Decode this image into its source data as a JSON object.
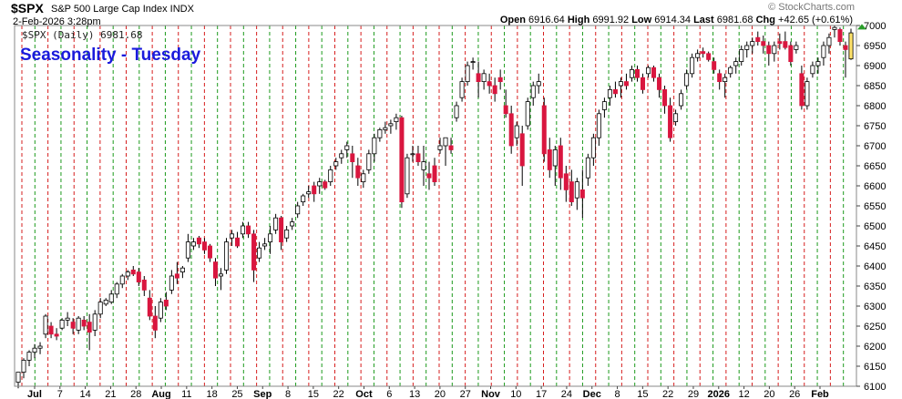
{
  "header": {
    "symbol": "$SPX",
    "name": "S&P 500 Large Cap Index  INDX",
    "timestamp": "2-Feb-2026 3:28pm",
    "credit": "© StockCharts.com",
    "ohlc": {
      "open_label": "Open",
      "open": "6916.64",
      "high_label": "High",
      "high": "6991.92",
      "low_label": "Low",
      "low": "6914.34",
      "last_label": "Last",
      "last": "6981.68",
      "chg_label": "Chg",
      "chg": "+42.65 (+0.61%)"
    },
    "legend": "$SPX (Daily) 6981.68"
  },
  "colors": {
    "up": "#ffffff",
    "down": "#d9163f",
    "dark": "#000000",
    "current": "#ffe36b",
    "red_line": "#d61f1f",
    "green_line": "#1c9a1c",
    "title": "#1a1adc",
    "arrow": "#2a9d2a"
  },
  "chart_data": {
    "type": "candlestick",
    "title": "Seasonality - Tuesday",
    "ylim": [
      6100,
      7000
    ],
    "y_ticks": [
      6100,
      6150,
      6200,
      6250,
      6300,
      6350,
      6400,
      6450,
      6500,
      6550,
      6600,
      6650,
      6700,
      6750,
      6800,
      6850,
      6900,
      6950,
      7000
    ],
    "x_tick_labels": [
      "Jul",
      "7",
      "14",
      "21",
      "28",
      "Aug",
      "11",
      "18",
      "25",
      "Sep",
      "8",
      "15",
      "22",
      "Oct",
      "6",
      "13",
      "20",
      "27",
      "Nov",
      "10",
      "17",
      "24",
      "Dec",
      "8",
      "15",
      "22",
      "29",
      "2026",
      "12",
      "20",
      "26",
      "Feb"
    ],
    "bold_tick_labels": [
      "Jul",
      "Aug",
      "Sep",
      "Oct",
      "Nov",
      "Dec",
      "2026",
      "Feb"
    ],
    "vertical_lines": [
      "red",
      "green",
      "red",
      "green",
      "red",
      "green",
      "red",
      "green",
      "red",
      "green",
      "red",
      "green",
      "red",
      "green",
      "red",
      "green",
      "red",
      "green",
      "red",
      "green",
      "red",
      "green",
      "red",
      "green",
      "red",
      "green",
      "red",
      "green",
      "red",
      "green",
      "red",
      "green",
      "red",
      "green",
      "red",
      "green",
      "red",
      "green",
      "red",
      "green",
      "red",
      "green",
      "red",
      "green",
      "red",
      "green",
      "red",
      "green",
      "red",
      "green",
      "red",
      "green",
      "red",
      "green",
      "red",
      "green",
      "red",
      "green",
      "red",
      "green",
      "red",
      "green",
      "red",
      "green"
    ],
    "candles": [
      [
        6110,
        6135,
        6095,
        6135
      ],
      [
        6135,
        6170,
        6120,
        6165
      ],
      [
        6165,
        6190,
        6150,
        6185
      ],
      [
        6185,
        6205,
        6170,
        6195
      ],
      [
        6195,
        6210,
        6180,
        6200
      ],
      [
        6230,
        6280,
        6220,
        6275
      ],
      [
        6250,
        6260,
        6220,
        6230
      ],
      [
        6230,
        6245,
        6215,
        6225
      ],
      [
        6245,
        6270,
        6240,
        6265
      ],
      [
        6265,
        6285,
        6250,
        6270
      ],
      [
        6260,
        6270,
        6230,
        6245
      ],
      [
        6240,
        6275,
        6230,
        6270
      ],
      [
        6265,
        6275,
        6240,
        6250
      ],
      [
        6260,
        6280,
        6190,
        6235
      ],
      [
        6240,
        6290,
        6225,
        6280
      ],
      [
        6280,
        6320,
        6270,
        6310
      ],
      [
        6305,
        6320,
        6300,
        6315
      ],
      [
        6310,
        6340,
        6305,
        6330
      ],
      [
        6330,
        6360,
        6320,
        6355
      ],
      [
        6355,
        6380,
        6345,
        6375
      ],
      [
        6375,
        6390,
        6365,
        6385
      ],
      [
        6390,
        6400,
        6375,
        6380
      ],
      [
        6385,
        6395,
        6350,
        6360
      ],
      [
        6365,
        6375,
        6325,
        6340
      ],
      [
        6320,
        6340,
        6265,
        6275
      ],
      [
        6275,
        6300,
        6220,
        6240
      ],
      [
        6270,
        6320,
        6260,
        6310
      ],
      [
        6315,
        6335,
        6290,
        6300
      ],
      [
        6340,
        6390,
        6330,
        6375
      ],
      [
        6380,
        6410,
        6355,
        6370
      ],
      [
        6385,
        6400,
        6370,
        6395
      ],
      [
        6420,
        6480,
        6410,
        6460
      ],
      [
        6450,
        6470,
        6440,
        6460
      ],
      [
        6470,
        6475,
        6445,
        6455
      ],
      [
        6460,
        6470,
        6430,
        6440
      ],
      [
        6450,
        6455,
        6410,
        6420
      ],
      [
        6410,
        6420,
        6350,
        6370
      ],
      [
        6375,
        6395,
        6340,
        6380
      ],
      [
        6390,
        6470,
        6380,
        6460
      ],
      [
        6470,
        6490,
        6450,
        6480
      ],
      [
        6470,
        6485,
        6445,
        6450
      ],
      [
        6480,
        6510,
        6470,
        6500
      ],
      [
        6500,
        6510,
        6470,
        6480
      ],
      [
        6480,
        6490,
        6360,
        6390
      ],
      [
        6420,
        6460,
        6410,
        6445
      ],
      [
        6450,
        6470,
        6440,
        6455
      ],
      [
        6460,
        6500,
        6430,
        6480
      ],
      [
        6490,
        6530,
        6480,
        6520
      ],
      [
        6520,
        6525,
        6440,
        6460
      ],
      [
        6470,
        6500,
        6460,
        6490
      ],
      [
        6500,
        6520,
        6490,
        6510
      ],
      [
        6530,
        6560,
        6520,
        6550
      ],
      [
        6560,
        6580,
        6550,
        6575
      ],
      [
        6580,
        6600,
        6570,
        6585
      ],
      [
        6600,
        6610,
        6560,
        6580
      ],
      [
        6600,
        6620,
        6580,
        6610
      ],
      [
        6610,
        6615,
        6590,
        6595
      ],
      [
        6610,
        6650,
        6600,
        6640
      ],
      [
        6650,
        6670,
        6640,
        6660
      ],
      [
        6670,
        6690,
        6655,
        6680
      ],
      [
        6690,
        6710,
        6670,
        6700
      ],
      [
        6680,
        6700,
        6620,
        6660
      ],
      [
        6650,
        6670,
        6600,
        6620
      ],
      [
        6610,
        6640,
        6595,
        6630
      ],
      [
        6640,
        6690,
        6630,
        6680
      ],
      [
        6680,
        6730,
        6660,
        6720
      ],
      [
        6720,
        6745,
        6710,
        6740
      ],
      [
        6740,
        6760,
        6730,
        6745
      ],
      [
        6750,
        6765,
        6730,
        6755
      ],
      [
        6760,
        6780,
        6740,
        6770
      ],
      [
        6770,
        6775,
        6545,
        6560
      ],
      [
        6580,
        6680,
        6570,
        6670
      ],
      [
        6680,
        6700,
        6660,
        6680
      ],
      [
        6680,
        6700,
        6650,
        6660
      ],
      [
        6640,
        6700,
        6600,
        6660
      ],
      [
        6630,
        6660,
        6590,
        6620
      ],
      [
        6650,
        6670,
        6600,
        6610
      ],
      [
        6690,
        6720,
        6680,
        6700
      ],
      [
        6700,
        6720,
        6650,
        6720
      ],
      [
        6700,
        6720,
        6680,
        6690
      ],
      [
        6770,
        6810,
        6760,
        6800
      ],
      [
        6820,
        6870,
        6810,
        6860
      ],
      [
        6860,
        6910,
        6850,
        6900
      ],
      [
        6910,
        6920,
        6890,
        6910
      ],
      [
        6880,
        6910,
        6820,
        6860
      ],
      [
        6860,
        6890,
        6840,
        6880
      ],
      [
        6860,
        6880,
        6830,
        6850
      ],
      [
        6850,
        6870,
        6810,
        6830
      ],
      [
        6870,
        6890,
        6840,
        6860
      ],
      [
        6800,
        6840,
        6770,
        6780
      ],
      [
        6780,
        6800,
        6680,
        6700
      ],
      [
        6720,
        6760,
        6700,
        6750
      ],
      [
        6730,
        6750,
        6600,
        6650
      ],
      [
        6750,
        6820,
        6740,
        6810
      ],
      [
        6820,
        6860,
        6800,
        6850
      ],
      [
        6850,
        6880,
        6830,
        6860
      ],
      [
        6800,
        6820,
        6660,
        6680
      ],
      [
        6690,
        6720,
        6620,
        6640
      ],
      [
        6650,
        6700,
        6600,
        6690
      ],
      [
        6700,
        6720,
        6590,
        6620
      ],
      [
        6630,
        6650,
        6560,
        6590
      ],
      [
        6610,
        6640,
        6550,
        6560
      ],
      [
        6570,
        6620,
        6540,
        6610
      ],
      [
        6590,
        6640,
        6520,
        6570
      ],
      [
        6620,
        6680,
        6600,
        6670
      ],
      [
        6670,
        6730,
        6650,
        6720
      ],
      [
        6720,
        6790,
        6700,
        6780
      ],
      [
        6790,
        6820,
        6770,
        6810
      ],
      [
        6820,
        6850,
        6800,
        6840
      ],
      [
        6840,
        6860,
        6820,
        6830
      ],
      [
        6850,
        6870,
        6820,
        6860
      ],
      [
        6860,
        6880,
        6840,
        6850
      ],
      [
        6870,
        6900,
        6860,
        6890
      ],
      [
        6890,
        6900,
        6860,
        6870
      ],
      [
        6870,
        6880,
        6830,
        6840
      ],
      [
        6880,
        6900,
        6870,
        6895
      ],
      [
        6895,
        6900,
        6860,
        6870
      ],
      [
        6870,
        6880,
        6820,
        6840
      ],
      [
        6840,
        6850,
        6780,
        6800
      ],
      [
        6800,
        6820,
        6710,
        6720
      ],
      [
        6760,
        6790,
        6750,
        6780
      ],
      [
        6800,
        6840,
        6790,
        6830
      ],
      [
        6850,
        6890,
        6840,
        6880
      ],
      [
        6880,
        6930,
        6870,
        6920
      ],
      [
        6920,
        6940,
        6910,
        6930
      ],
      [
        6935,
        6945,
        6920,
        6930
      ],
      [
        6930,
        6935,
        6910,
        6915
      ],
      [
        6910,
        6920,
        6880,
        6890
      ],
      [
        6880,
        6890,
        6840,
        6860
      ],
      [
        6860,
        6880,
        6820,
        6870
      ],
      [
        6880,
        6900,
        6870,
        6895
      ],
      [
        6900,
        6920,
        6880,
        6910
      ],
      [
        6910,
        6950,
        6900,
        6940
      ],
      [
        6940,
        6960,
        6920,
        6950
      ],
      [
        6950,
        6970,
        6930,
        6960
      ],
      [
        6970,
        6985,
        6950,
        6960
      ],
      [
        6960,
        6975,
        6930,
        6950
      ],
      [
        6950,
        6960,
        6900,
        6930
      ],
      [
        6930,
        6960,
        6910,
        6950
      ],
      [
        6960,
        6980,
        6940,
        6955
      ],
      [
        6960,
        6985,
        6940,
        6945
      ],
      [
        6950,
        6960,
        6900,
        6910
      ],
      [
        6940,
        6960,
        6930,
        6950
      ],
      [
        6880,
        6900,
        6790,
        6800
      ],
      [
        6800,
        6870,
        6790,
        6860
      ],
      [
        6880,
        6910,
        6870,
        6900
      ],
      [
        6900,
        6920,
        6880,
        6910
      ],
      [
        6920,
        6960,
        6900,
        6950
      ],
      [
        6950,
        6980,
        6930,
        6970
      ],
      [
        6990,
        7000,
        6970,
        6995
      ],
      [
        6990,
        6995,
        6950,
        6960
      ],
      [
        6950,
        6960,
        6870,
        6940
      ],
      [
        6916.64,
        6991.92,
        6914.34,
        6981.68
      ]
    ]
  }
}
